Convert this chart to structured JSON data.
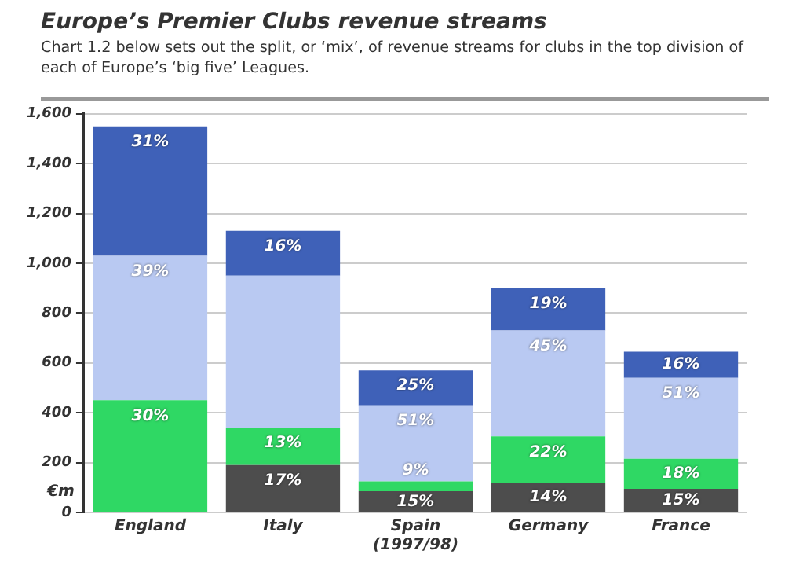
{
  "chart_data": {
    "type": "bar",
    "stacked": true,
    "title": "Europe’s Premier Clubs revenue streams",
    "subtitle": "Chart 1.2 below sets out the split, or ‘mix’, of revenue streams for clubs in the top division of each of Europe’s ‘big five’ Leagues.",
    "ylabel": "€m",
    "categories": [
      "England",
      "Italy",
      "Spain (1997/98)",
      "Germany",
      "France"
    ],
    "series": [
      {
        "color": "#4d4d4d",
        "values": [
          0,
          190,
          85,
          120,
          95
        ]
      },
      {
        "color": "#2fd864",
        "values": [
          450,
          150,
          40,
          185,
          120
        ]
      },
      {
        "color": "#b9c9f2",
        "values": [
          580,
          610,
          305,
          425,
          325
        ]
      },
      {
        "color": "#3f61b8",
        "values": [
          520,
          180,
          140,
          170,
          105
        ]
      }
    ],
    "annotations": [
      {
        "text": "31%",
        "x": "England",
        "y": 1550
      },
      {
        "text": "39%",
        "x": "England",
        "y": 1030
      },
      {
        "text": "30%",
        "x": "England",
        "y": 450
      },
      {
        "text": "16%",
        "x": "Italy",
        "y": 1130
      },
      {
        "text": "13%",
        "x": "Italy",
        "y": 340
      },
      {
        "text": "17%",
        "x": "Italy",
        "y": 190
      },
      {
        "text": "25%",
        "x": "Spain (1997/98)",
        "y": 570
      },
      {
        "text": "51%",
        "x": "Spain (1997/98)",
        "y": 430
      },
      {
        "text": "9%",
        "x": "Spain (1997/98)",
        "y": 125
      },
      {
        "text": "15%",
        "x": "Spain (1997/98)",
        "y": 85
      },
      {
        "text": "19%",
        "x": "Germany",
        "y": 900
      },
      {
        "text": "45%",
        "x": "Germany",
        "y": 730
      },
      {
        "text": "22%",
        "x": "Germany",
        "y": 305
      },
      {
        "text": "14%",
        "x": "Germany",
        "y": 120
      },
      {
        "text": "16%",
        "x": "France",
        "y": 645
      },
      {
        "text": "51%",
        "x": "France",
        "y": 540
      },
      {
        "text": "18%",
        "x": "France",
        "y": 215
      },
      {
        "text": "15%",
        "x": "France",
        "y": 95
      }
    ],
    "ylim": [
      0,
      1600
    ],
    "yticks": [
      0,
      {
        "value": 200,
        "label": "200"
      },
      {
        "value": 400,
        "label": "400"
      },
      {
        "value": 600,
        "label": "600"
      },
      {
        "value": 800,
        "label": "800"
      },
      {
        "value": 1000,
        "label": "1,000"
      },
      {
        "value": 1200,
        "label": "1,200"
      },
      {
        "value": 1400,
        "label": "1,400"
      },
      {
        "value": 1600,
        "label": "1,600"
      }
    ],
    "grid": "y",
    "legend": false
  }
}
